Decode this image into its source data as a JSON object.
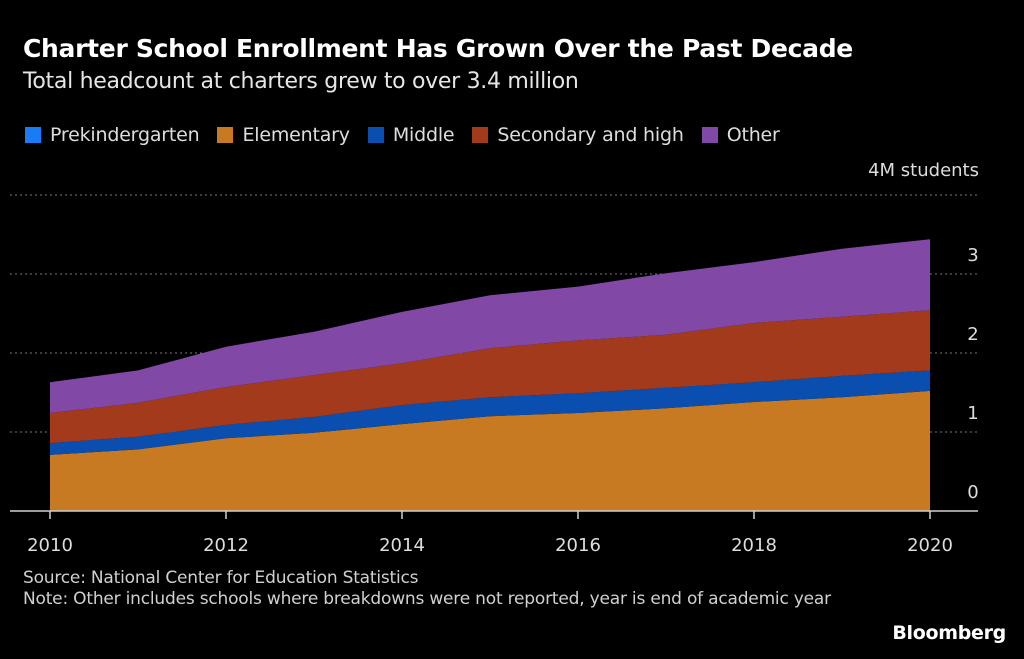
{
  "header": {
    "title": "Charter School Enrollment Has Grown Over the Past Decade",
    "subtitle": "Total headcount at charters grew to over 3.4 million"
  },
  "footer": {
    "source": "Source: National Center for Education Statistics",
    "note": "Note: Other includes schools where breakdowns were not reported, year is end of academic year",
    "brand": "Bloomberg"
  },
  "chart_data": {
    "type": "area",
    "stacked": true,
    "title": "Charter School Enrollment Has Grown Over the Past Decade",
    "subtitle": "Total headcount at charters grew to over 3.4 million",
    "xlabel": "",
    "ylabel": "4M students",
    "x": [
      2010,
      2011,
      2012,
      2013,
      2014,
      2015,
      2016,
      2017,
      2018,
      2019,
      2020
    ],
    "x_ticks": [
      "2010",
      "2012",
      "2014",
      "2016",
      "2018",
      "2020"
    ],
    "y_ticks": [
      "0",
      "1",
      "2",
      "3",
      "4M students"
    ],
    "ylim": [
      0,
      4
    ],
    "unit": "millions of students",
    "grid": true,
    "legend_position": "top",
    "series": [
      {
        "name": "Prekindergarten",
        "color": "#1a7cf5",
        "values": [
          0,
          0,
          0,
          0,
          0,
          0,
          0,
          0,
          0,
          0,
          0
        ]
      },
      {
        "name": "Elementary",
        "color": "#c87a22",
        "values": [
          0.71,
          0.78,
          0.92,
          0.99,
          1.1,
          1.2,
          1.24,
          1.3,
          1.38,
          1.44,
          1.52
        ]
      },
      {
        "name": "Middle",
        "color": "#0a4fb0",
        "values": [
          0.15,
          0.16,
          0.17,
          0.2,
          0.24,
          0.24,
          0.25,
          0.26,
          0.25,
          0.27,
          0.26
        ]
      },
      {
        "name": "Secondary and high",
        "color": "#a33a1c",
        "values": [
          0.38,
          0.43,
          0.48,
          0.53,
          0.53,
          0.62,
          0.67,
          0.67,
          0.75,
          0.75,
          0.76
        ]
      },
      {
        "name": "Other",
        "color": "#8148a6",
        "values": [
          0.39,
          0.41,
          0.51,
          0.55,
          0.65,
          0.67,
          0.68,
          0.78,
          0.77,
          0.86,
          0.9
        ]
      }
    ]
  }
}
